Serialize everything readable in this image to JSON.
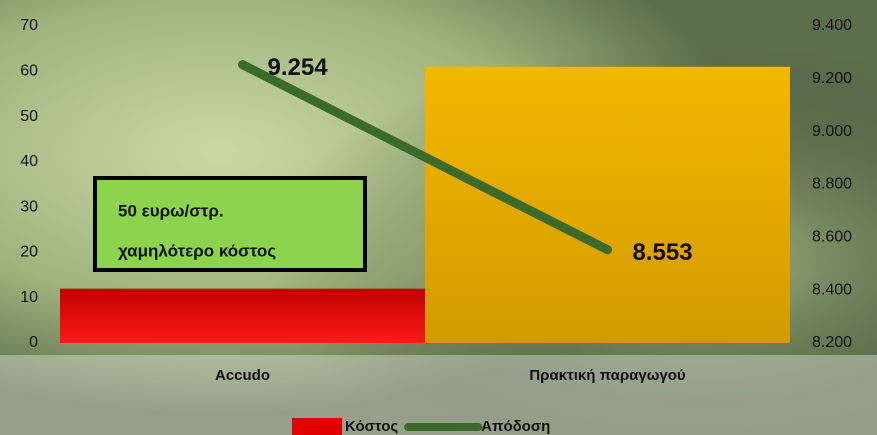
{
  "chart_data": {
    "type": "bar",
    "categories": [
      "Accudo",
      "Πρακτική παραγωγού"
    ],
    "series": [
      {
        "name": "Κόστος",
        "type": "bar",
        "colors": [
          "#e00000",
          "#e6a800"
        ],
        "values": [
          12,
          61
        ]
      },
      {
        "name": "Απόδοση",
        "type": "line",
        "axis": "y2",
        "color": "#3b6a2b",
        "values": [
          9.254,
          8.553
        ]
      }
    ],
    "ylim": [
      0,
      70
    ],
    "yticks": [
      0,
      10,
      20,
      30,
      40,
      50,
      60,
      70
    ],
    "y2lim": [
      8.2,
      9.4
    ],
    "y2ticks": [
      {
        "value": 8.2,
        "label": "8.200"
      },
      {
        "value": 8.4,
        "label": "8.400"
      },
      {
        "value": 8.6,
        "label": "8.600"
      },
      {
        "value": 8.8,
        "label": "8.800"
      },
      {
        "value": 9.0,
        "label": "9.000"
      },
      {
        "value": 9.2,
        "label": "9.200"
      },
      {
        "value": 9.4,
        "label": "9.400"
      }
    ],
    "annotation": [
      "50 ευρω/στρ.",
      "χαμηλότερο κόστος"
    ],
    "grid": false,
    "legend": "bottom"
  }
}
